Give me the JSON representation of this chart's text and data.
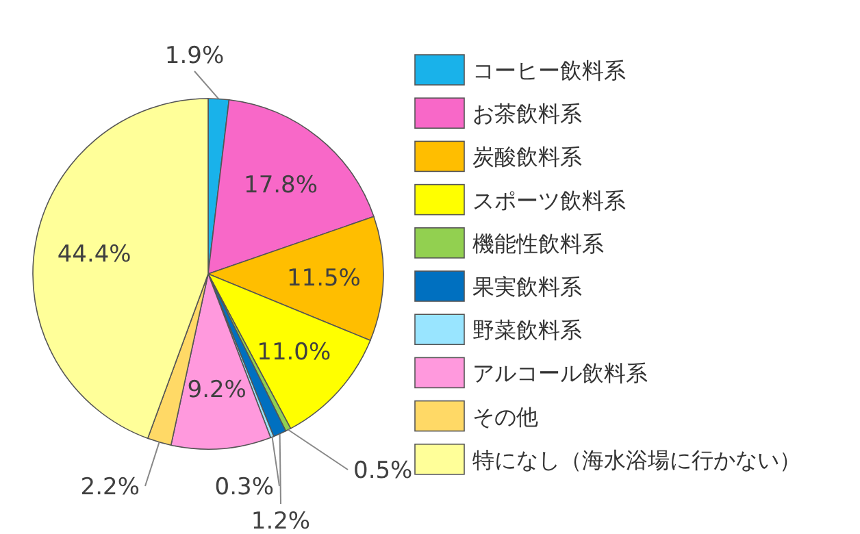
{
  "chart_data": {
    "type": "pie",
    "categories": [
      "コーヒー飲料系",
      "お茶飲料系",
      "炭酸飲料系",
      "スポーツ飲料系",
      "機能性飲料系",
      "果実飲料系",
      "野菜飲料系",
      "アルコール飲料系",
      "その他",
      "特になし（海水浴場に行かない）"
    ],
    "values": [
      1.9,
      17.8,
      11.5,
      11.0,
      0.5,
      1.2,
      0.3,
      9.2,
      2.2,
      44.4
    ],
    "colors": [
      "#19b2ea",
      "#f868c8",
      "#ffbe00",
      "#ffff00",
      "#92d050",
      "#0070c0",
      "#99e5ff",
      "#ff99dd",
      "#ffd966",
      "#ffff99"
    ],
    "value_labels": [
      "1.9%",
      "17.8%",
      "11.5%",
      "11.0%",
      "0.5%",
      "1.2%",
      "0.3%",
      "9.2%",
      "2.2%",
      "44.4%"
    ],
    "legend": "right"
  }
}
